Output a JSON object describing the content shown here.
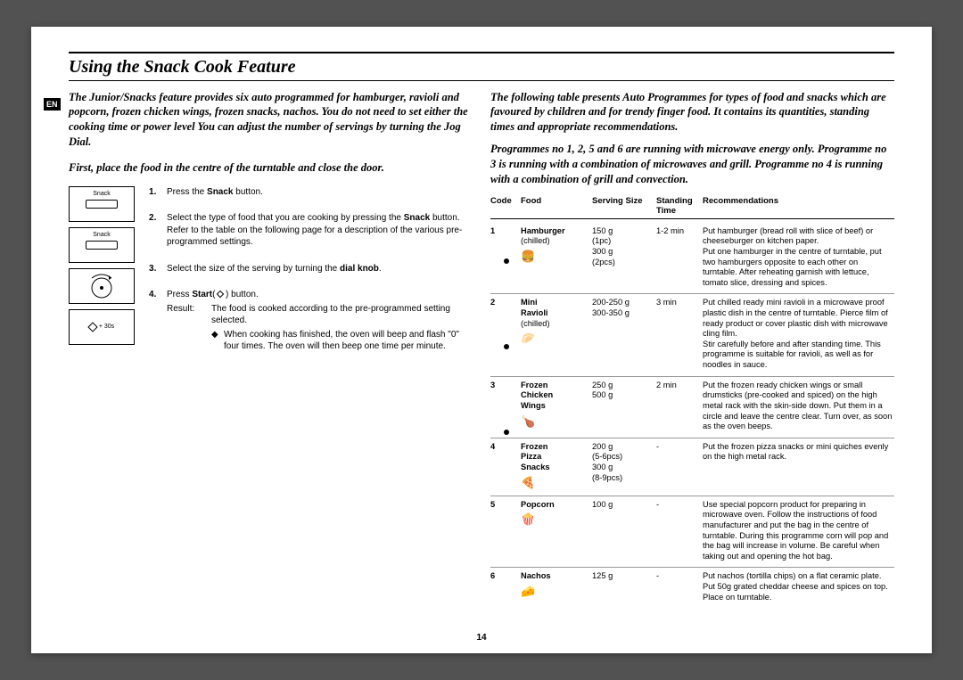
{
  "lang_badge": "EN",
  "title": "Using the Snack Cook Feature",
  "page_number": "14",
  "left": {
    "intro": "The Junior/Snacks feature provides six auto programmed for hamburger, ravioli and popcorn, frozen chicken wings, frozen snacks, nachos. You do not need to set either the cooking time or power level You can adjust the number of servings by turning the Jog Dial.",
    "intro2": "First, place the food in the centre of the turntable and close the door.",
    "panel_snack_label": "Snack",
    "panel_start_label": "+ 30s",
    "steps": {
      "s1": {
        "a": "Press the ",
        "b": "Snack",
        "c": " button."
      },
      "s2": {
        "a": "Select the type of food that you are cooking by pressing the ",
        "b": "Snack",
        "c": " button. Refer to the table on the following page for a description of the various pre-programmed settings."
      },
      "s3": {
        "a": "Select the size of the serving by turning the ",
        "b": "dial knob",
        "c": "."
      },
      "s4": {
        "a": "Press ",
        "b": "Start",
        "c1": "(",
        "c2": " ) button.",
        "result_lbl": "Result:",
        "result_text": "The food is cooked according to the pre-programmed setting selected.",
        "bullet": "When cooking has finished, the oven will beep and flash \"0\" four times. The oven will then beep one time per minute."
      }
    }
  },
  "right": {
    "intro1": "The following table presents Auto Programmes for types of food and snacks which are favoured by children and for trendy finger food. It contains its quantities, standing times and appropriate recommendations.",
    "intro2": "Programmes no 1, 2, 5 and 6 are running with microwave energy only. Programme no 3 is running with a combination of microwaves and grill. Programme no 4 is running with a combination of grill and convection.",
    "headers": {
      "code": "Code",
      "food": "Food",
      "size": "Serving Size",
      "time": "Standing Time",
      "rec": "Recommendations"
    },
    "rows": [
      {
        "code": "1",
        "food": "Hamburger",
        "sub": "(chilled)",
        "icon": "🍔",
        "size": "150 g\n(1pc)\n300 g\n(2pcs)",
        "time": "1-2 min",
        "rec": "Put hamburger (bread roll with slice of beef) or cheeseburger on kitchen paper.\nPut one hamburger in the centre of turntable, put two hamburgers opposite to each other on turntable. After reheating garnish with lettuce, tomato slice, dressing and spices."
      },
      {
        "code": "2",
        "food": "Mini Ravioli",
        "sub": "(chilled)",
        "icon": "🥟",
        "size": "200-250 g\n300-350 g",
        "time": "3 min",
        "rec": "Put chilled ready mini ravioli in a microwave proof plastic dish in the centre of turntable. Pierce film of ready product or cover plastic dish with microwave cling film.\nStir carefully before and after standing time. This programme is suitable for ravioli, as well as for noodles in sauce."
      },
      {
        "code": "3",
        "food": "Frozen Chicken Wings",
        "sub": "",
        "icon": "🍗",
        "size": "250 g\n500 g",
        "time": "2 min",
        "rec": "Put the frozen ready chicken wings or small drumsticks (pre-cooked and spiced) on the high metal rack with the skin-side down. Put them in a circle and leave the centre clear. Turn over, as soon as the oven beeps."
      },
      {
        "code": "4",
        "food": "Frozen Pizza Snacks",
        "sub": "",
        "icon": "🍕",
        "size": "200 g\n(5-6pcs)\n300 g\n(8-9pcs)",
        "time": "-",
        "rec": "Put the frozen pizza snacks or mini quiches evenly on the high metal rack."
      },
      {
        "code": "5",
        "food": "Popcorn",
        "sub": "",
        "icon": "🍿",
        "size": "100 g",
        "time": "-",
        "rec": "Use special popcorn product for preparing in microwave oven. Follow the instructions of food manufacturer and put the bag in the centre of turntable. During this programme corn will pop and the bag will increase in volume. Be careful when taking out and opening the hot bag."
      },
      {
        "code": "6",
        "food": "Nachos",
        "sub": "",
        "icon": "🧀",
        "size": "125 g",
        "time": "-",
        "rec": "Put nachos (tortilla chips) on a flat ceramic plate.\nPut 50g grated cheddar cheese and spices on top. Place on turntable."
      }
    ]
  }
}
